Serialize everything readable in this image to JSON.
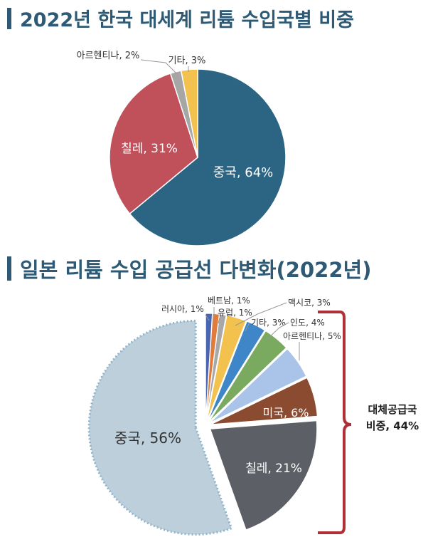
{
  "colors": {
    "title": "#2e5a75",
    "china1": "#2b6583",
    "chile1": "#c0505a",
    "argentina1": "#a6a6a6",
    "other1": "#f2c14e",
    "china2": "#bccfdb",
    "chile2": "#5c5f65",
    "usa": "#8a4b30",
    "argentina2": "#a9c4e8",
    "india": "#7aaa5f",
    "other2": "#3f86c8",
    "mexico": "#f2c14e",
    "europe": "#a8a8a8",
    "vietnam": "#e07b3c",
    "russia": "#4a66b0",
    "brace": "#b03038"
  },
  "titles": {
    "chart1": "2022년 한국 대세계 리튬 수입국별 비중",
    "chart2": "일본 리튬 수입 공급선 다변화(2022년)"
  },
  "annotation": {
    "line1": "대체공급국",
    "line2": "비중, 44%"
  },
  "chart_data": [
    {
      "type": "pie",
      "title": "2022년 한국 대세계 리튬 수입국별 비중",
      "slices": [
        {
          "label": "중국, 64%",
          "value": 64
        },
        {
          "label": "칠레, 31%",
          "value": 31
        },
        {
          "label": "아르헨티나, 2%",
          "value": 2
        },
        {
          "label": "기타, 3%",
          "value": 3
        }
      ]
    },
    {
      "type": "pie",
      "title": "일본 리튬 수입 공급선 다변화(2022년)",
      "slices": [
        {
          "label": "러시아, 1%",
          "value": 1
        },
        {
          "label": "베트남, 1%",
          "value": 1
        },
        {
          "label": "유럽, 1%",
          "value": 1
        },
        {
          "label": "맥시코, 3%",
          "value": 3
        },
        {
          "label": "기타, 3%",
          "value": 3
        },
        {
          "label": "인도, 4%",
          "value": 4
        },
        {
          "label": "아르헨티나, 5%",
          "value": 5
        },
        {
          "label": "미국, 6%",
          "value": 6
        },
        {
          "label": "칠레, 21%",
          "value": 21
        },
        {
          "label": "중국, 56%",
          "value": 56
        }
      ]
    }
  ]
}
